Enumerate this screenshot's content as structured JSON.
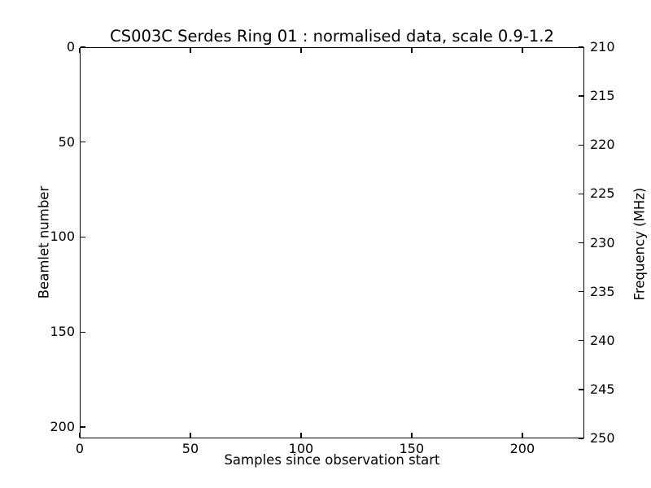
{
  "figure": {
    "background": "#ffffff",
    "axis_color": "#000000",
    "text_color": "#000000"
  },
  "chart_data": {
    "type": "heatmap",
    "title": "CS003C Serdes Ring 01 : normalised data, scale 0.9-1.2",
    "xlabel": "Samples since observation start",
    "ylabel_left": "Beamlet number",
    "ylabel_right": "Frequency (MHz)",
    "xlim": [
      0,
      228
    ],
    "ylim_left": [
      0,
      206
    ],
    "ylim_right": [
      210,
      250
    ],
    "y_axis_inverted": true,
    "xticks": [
      0,
      50,
      100,
      150,
      200
    ],
    "yticks_left": [
      0,
      50,
      100,
      150,
      200
    ],
    "yticks_right": [
      210,
      215,
      220,
      225,
      230,
      235,
      240,
      245,
      250
    ],
    "grid": false,
    "values": []
  }
}
